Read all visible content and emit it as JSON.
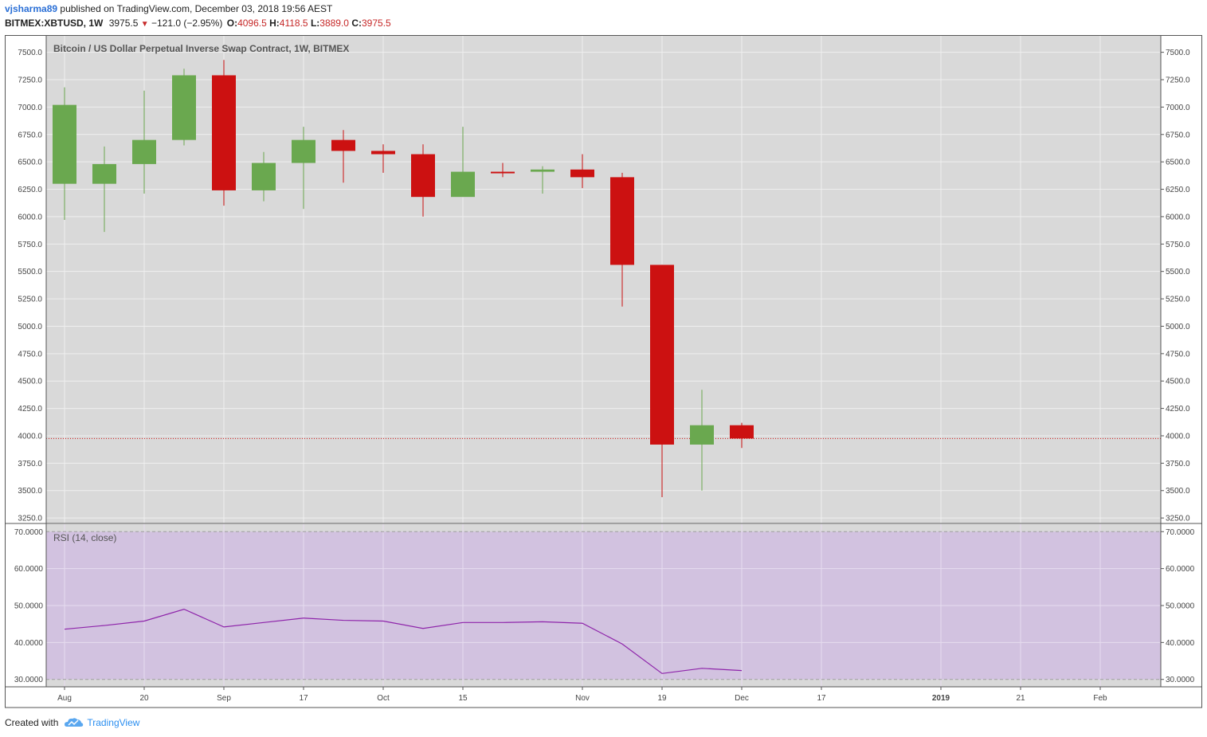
{
  "header": {
    "user": "vjsharma89",
    "published_text": "published on TradingView.com, December 03, 2018 19:56 AEST",
    "symbol": "BITMEX:XBTUSD, 1W",
    "last": "3975.5",
    "arrow": "▼",
    "change": "−121.0 (−2.95%)",
    "o_label": "O:",
    "o_value": "4096.5",
    "h_label": "H:",
    "h_value": "4118.5",
    "l_label": "L:",
    "l_value": "3889.0",
    "c_label": "C:",
    "c_value": "3975.5"
  },
  "footer": {
    "created_with": "Created with",
    "brand": "TradingView"
  },
  "colors": {
    "up": "#6aa84f",
    "down": "#cc1111",
    "rsi_line": "#8e24aa",
    "rsi_band": "#d2c2e0",
    "pane_bg": "#d9d9d9"
  },
  "chart_data": [
    {
      "type": "candlestick",
      "title": "Bitcoin / US Dollar Perpetual Inverse Swap Contract, 1W, BITMEX",
      "ylim": [
        3200,
        7650
      ],
      "yticks": [
        3250,
        3500,
        3750,
        4000,
        4250,
        4500,
        4750,
        5000,
        5250,
        5500,
        5750,
        6000,
        6250,
        6500,
        6750,
        7000,
        7250,
        7500
      ],
      "ytick_labels": [
        "3250.0",
        "3500.0",
        "3750.0",
        "4000.0",
        "4250.0",
        "4500.0",
        "4750.0",
        "5000.0",
        "5250.0",
        "5500.0",
        "5750.0",
        "6000.0",
        "6250.0",
        "6500.0",
        "6750.0",
        "7000.0",
        "7250.0",
        "7500.0"
      ],
      "x_tick_labels": [
        {
          "label": "Aug",
          "week": 0,
          "bold": false
        },
        {
          "label": "20",
          "week": 2,
          "bold": false
        },
        {
          "label": "Sep",
          "week": 4,
          "bold": false
        },
        {
          "label": "17",
          "week": 6,
          "bold": false
        },
        {
          "label": "Oct",
          "week": 8,
          "bold": false
        },
        {
          "label": "15",
          "week": 10,
          "bold": false
        },
        {
          "label": "Nov",
          "week": 13,
          "bold": false
        },
        {
          "label": "19",
          "week": 15,
          "bold": false
        },
        {
          "label": "Dec",
          "week": 17,
          "bold": false
        },
        {
          "label": "17",
          "week": 19,
          "bold": false
        },
        {
          "label": "2019",
          "week": 22,
          "bold": true
        },
        {
          "label": "21",
          "week": 24,
          "bold": false
        },
        {
          "label": "Feb",
          "week": 26,
          "bold": false
        }
      ],
      "last_price": 3975.5,
      "candles": [
        {
          "o": 6300,
          "h": 7180,
          "l": 5970,
          "c": 7020
        },
        {
          "o": 6300,
          "h": 6640,
          "l": 5860,
          "c": 6480
        },
        {
          "o": 6480,
          "h": 7150,
          "l": 6210,
          "c": 6700
        },
        {
          "o": 6700,
          "h": 7350,
          "l": 6650,
          "c": 7290
        },
        {
          "o": 7290,
          "h": 7430,
          "l": 6100,
          "c": 6240
        },
        {
          "o": 6240,
          "h": 6590,
          "l": 6140,
          "c": 6490
        },
        {
          "o": 6490,
          "h": 6820,
          "l": 6070,
          "c": 6700
        },
        {
          "o": 6700,
          "h": 6790,
          "l": 6310,
          "c": 6600
        },
        {
          "o": 6600,
          "h": 6660,
          "l": 6400,
          "c": 6570
        },
        {
          "o": 6570,
          "h": 6660,
          "l": 6000,
          "c": 6180
        },
        {
          "o": 6180,
          "h": 6820,
          "l": 6180,
          "c": 6410
        },
        {
          "o": 6410,
          "h": 6490,
          "l": 6360,
          "c": 6400
        },
        {
          "o": 6410,
          "h": 6460,
          "l": 6210,
          "c": 6430
        },
        {
          "o": 6430,
          "h": 6570,
          "l": 6260,
          "c": 6360
        },
        {
          "o": 6360,
          "h": 6400,
          "l": 5180,
          "c": 5560
        },
        {
          "o": 5560,
          "h": 5560,
          "l": 3440,
          "c": 3920
        },
        {
          "o": 3920,
          "h": 4420,
          "l": 3500,
          "c": 4096.5
        },
        {
          "o": 4096.5,
          "h": 4118.5,
          "l": 3889,
          "c": 3975.5
        }
      ]
    },
    {
      "type": "line",
      "title": "RSI (14, close)",
      "ylim": [
        28,
        72
      ],
      "yticks": [
        30,
        40,
        50,
        60,
        70
      ],
      "ytick_labels": [
        "30.0000",
        "40.0000",
        "50.0000",
        "60.0000",
        "70.0000"
      ],
      "band": [
        30,
        70
      ],
      "values": [
        43.6,
        44.6,
        45.8,
        49.0,
        44.2,
        45.4,
        46.6,
        46.0,
        45.8,
        43.8,
        45.4,
        45.4,
        45.6,
        45.2,
        39.6,
        31.6,
        33.0,
        32.4
      ]
    }
  ]
}
